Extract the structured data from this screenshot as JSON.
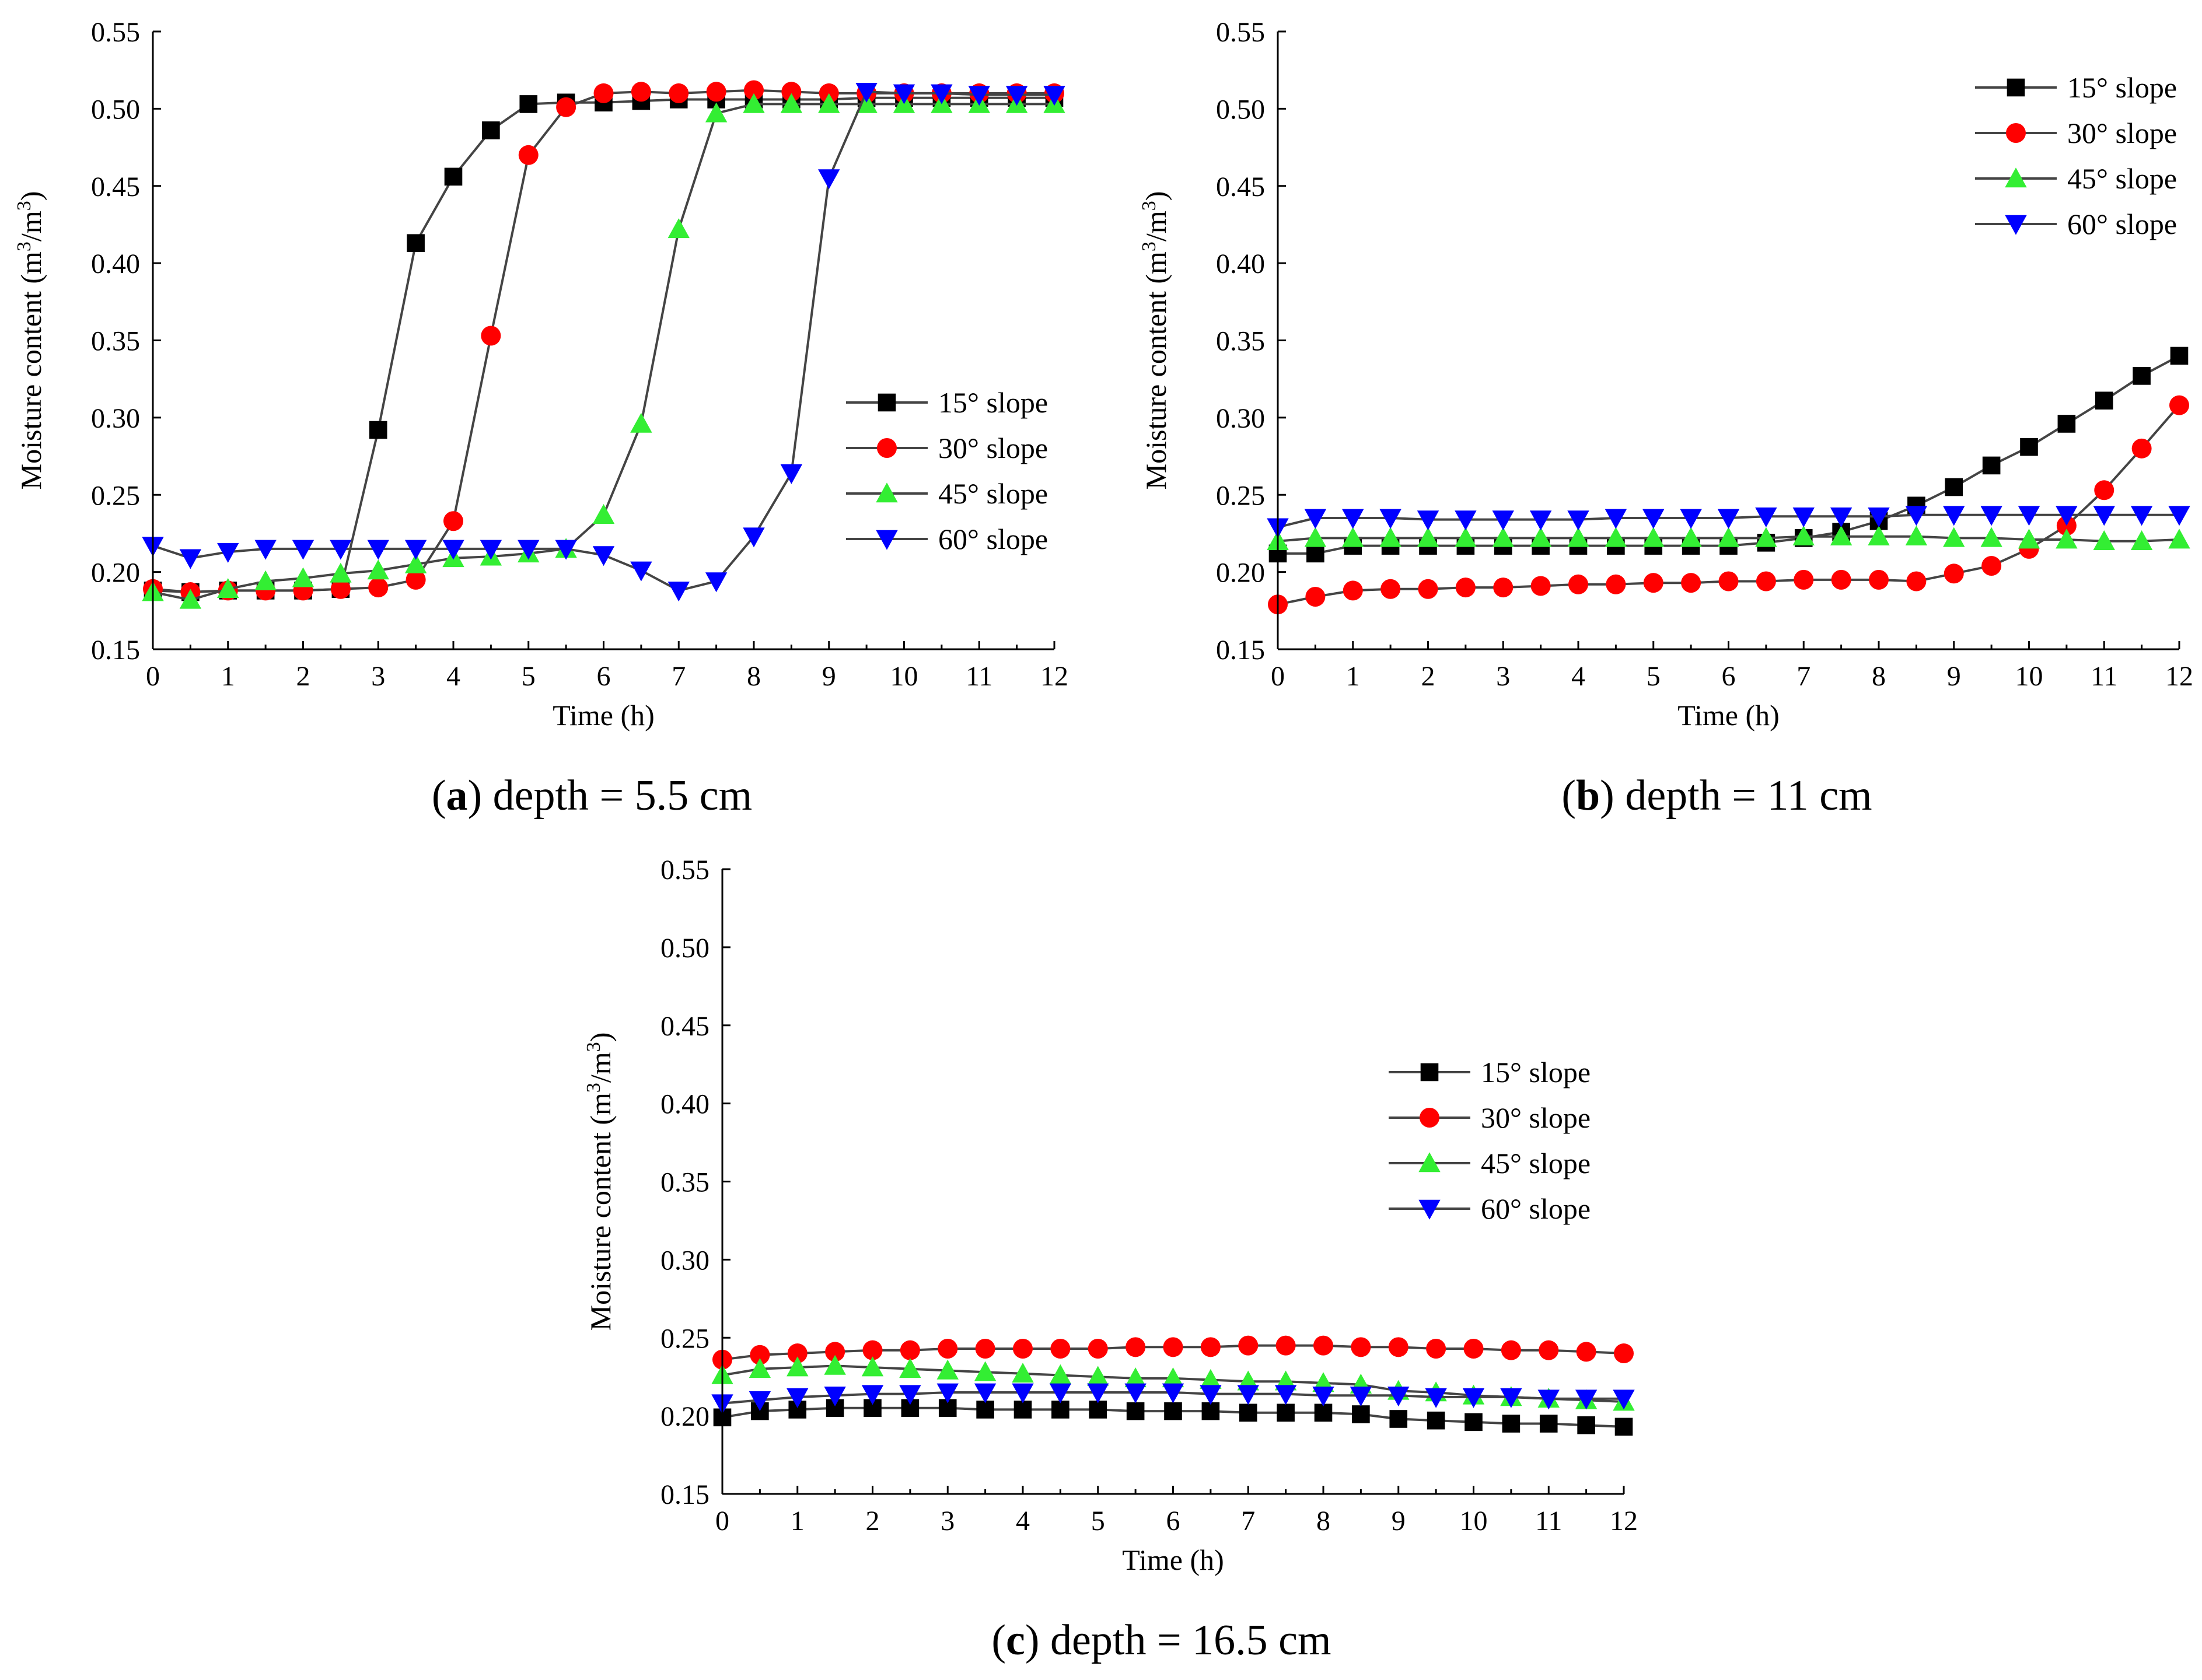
{
  "colors": {
    "s15": "#000000",
    "s30": "#ff0000",
    "s45": "#33ee33",
    "s60": "#0000ff",
    "line": "#444444"
  },
  "chart_data": [
    {
      "type": "line",
      "panel_letter": "a",
      "caption_text": " depth = 5.5 cm",
      "title": "(a) depth = 5.5 cm",
      "xlabel": "Time (h)",
      "ylabel_main": "Moisture content (m",
      "ylabel_sup1": "3",
      "ylabel_mid": "/m",
      "ylabel_sup2": "3",
      "ylabel_end": ")",
      "xlim": [
        0,
        12
      ],
      "ylim": [
        0.15,
        0.55
      ],
      "xticks": [
        "0",
        "1",
        "2",
        "3",
        "4",
        "5",
        "6",
        "7",
        "8",
        "9",
        "10",
        "11",
        "12"
      ],
      "yticks": [
        "0.15",
        "0.20",
        "0.25",
        "0.30",
        "0.35",
        "0.40",
        "0.45",
        "0.50",
        "0.55"
      ],
      "legend_position": "center-right",
      "x": [
        0,
        0.5,
        1,
        1.5,
        2,
        2.5,
        3,
        3.5,
        4,
        4.5,
        5,
        5.5,
        6,
        6.5,
        7,
        7.5,
        8,
        8.5,
        9,
        9.5,
        10,
        10.5,
        11,
        11.5,
        12
      ],
      "series": [
        {
          "name": "15° slope",
          "marker": "square",
          "color_key": "s15",
          "values": [
            0.188,
            0.187,
            0.188,
            0.188,
            0.188,
            0.189,
            0.292,
            0.413,
            0.456,
            0.486,
            0.503,
            0.504,
            0.504,
            0.505,
            0.506,
            0.506,
            0.506,
            0.506,
            0.506,
            0.507,
            0.507,
            0.507,
            0.507,
            0.507,
            0.507
          ]
        },
        {
          "name": "30° slope",
          "marker": "circle",
          "color_key": "s30",
          "values": [
            0.189,
            0.187,
            0.188,
            0.188,
            0.188,
            0.189,
            0.19,
            0.195,
            0.233,
            0.353,
            0.47,
            0.501,
            0.51,
            0.511,
            0.51,
            0.511,
            0.512,
            0.511,
            0.51,
            0.51,
            0.51,
            0.51,
            0.51,
            0.51,
            0.51
          ]
        },
        {
          "name": "45° slope",
          "marker": "triangle-up",
          "color_key": "s45",
          "values": [
            0.187,
            0.182,
            0.189,
            0.194,
            0.196,
            0.199,
            0.201,
            0.205,
            0.209,
            0.21,
            0.212,
            0.215,
            0.237,
            0.296,
            0.422,
            0.497,
            0.503,
            0.503,
            0.503,
            0.503,
            0.503,
            0.503,
            0.503,
            0.503,
            0.503
          ]
        },
        {
          "name": "60° slope",
          "marker": "triangle-down",
          "color_key": "s60",
          "values": [
            0.217,
            0.209,
            0.213,
            0.215,
            0.215,
            0.215,
            0.215,
            0.215,
            0.215,
            0.215,
            0.215,
            0.215,
            0.211,
            0.201,
            0.188,
            0.194,
            0.223,
            0.264,
            0.455,
            0.511,
            0.51,
            0.51,
            0.509,
            0.509,
            0.509
          ]
        }
      ]
    },
    {
      "type": "line",
      "panel_letter": "b",
      "caption_text": " depth = 11 cm",
      "title": "(b) depth = 11 cm",
      "xlabel": "Time (h)",
      "ylabel_main": "Moisture content (m",
      "ylabel_sup1": "3",
      "ylabel_mid": "/m",
      "ylabel_sup2": "3",
      "ylabel_end": ")",
      "xlim": [
        0,
        12
      ],
      "ylim": [
        0.15,
        0.55
      ],
      "xticks": [
        "0",
        "1",
        "2",
        "3",
        "4",
        "5",
        "6",
        "7",
        "8",
        "9",
        "10",
        "11",
        "12"
      ],
      "yticks": [
        "0.15",
        "0.20",
        "0.25",
        "0.30",
        "0.35",
        "0.40",
        "0.45",
        "0.50",
        "0.55"
      ],
      "legend_position": "top-right",
      "x": [
        0,
        0.5,
        1,
        1.5,
        2,
        2.5,
        3,
        3.5,
        4,
        4.5,
        5,
        5.5,
        6,
        6.5,
        7,
        7.5,
        8,
        8.5,
        9,
        9.5,
        10,
        10.5,
        11,
        11.5,
        12
      ],
      "series": [
        {
          "name": "15° slope",
          "marker": "square",
          "color_key": "s15",
          "values": [
            0.212,
            0.212,
            0.217,
            0.217,
            0.217,
            0.217,
            0.217,
            0.217,
            0.217,
            0.217,
            0.217,
            0.217,
            0.217,
            0.219,
            0.222,
            0.226,
            0.233,
            0.243,
            0.255,
            0.269,
            0.281,
            0.296,
            0.311,
            0.327,
            0.34
          ]
        },
        {
          "name": "30° slope",
          "marker": "circle",
          "color_key": "s30",
          "values": [
            0.179,
            0.184,
            0.188,
            0.189,
            0.189,
            0.19,
            0.19,
            0.191,
            0.192,
            0.192,
            0.193,
            0.193,
            0.194,
            0.194,
            0.195,
            0.195,
            0.195,
            0.194,
            0.199,
            0.204,
            0.215,
            0.23,
            0.253,
            0.28,
            0.308
          ]
        },
        {
          "name": "45° slope",
          "marker": "triangle-up",
          "color_key": "s45",
          "values": [
            0.22,
            0.222,
            0.222,
            0.222,
            0.222,
            0.222,
            0.222,
            0.222,
            0.222,
            0.222,
            0.222,
            0.222,
            0.222,
            0.222,
            0.223,
            0.223,
            0.223,
            0.223,
            0.222,
            0.222,
            0.221,
            0.221,
            0.22,
            0.22,
            0.221
          ]
        },
        {
          "name": "60° slope",
          "marker": "triangle-down",
          "color_key": "s60",
          "values": [
            0.229,
            0.235,
            0.235,
            0.235,
            0.234,
            0.234,
            0.234,
            0.234,
            0.234,
            0.235,
            0.235,
            0.235,
            0.235,
            0.236,
            0.236,
            0.236,
            0.236,
            0.237,
            0.237,
            0.237,
            0.237,
            0.237,
            0.237,
            0.237,
            0.237
          ]
        }
      ]
    },
    {
      "type": "line",
      "panel_letter": "c",
      "caption_text": " depth = 16.5 cm",
      "title": "(c) depth = 16.5 cm",
      "xlabel": "Time (h)",
      "ylabel_main": "Moisture content (m",
      "ylabel_sup1": "3",
      "ylabel_mid": "/m",
      "ylabel_sup2": "3",
      "ylabel_end": ")",
      "xlim": [
        0,
        12
      ],
      "ylim": [
        0.15,
        0.55
      ],
      "xticks": [
        "0",
        "1",
        "2",
        "3",
        "4",
        "5",
        "6",
        "7",
        "8",
        "9",
        "10",
        "11",
        "12"
      ],
      "yticks": [
        "0.15",
        "0.20",
        "0.25",
        "0.30",
        "0.35",
        "0.40",
        "0.45",
        "0.50",
        "0.55"
      ],
      "legend_position": "center-right",
      "x": [
        0,
        0.5,
        1,
        1.5,
        2,
        2.5,
        3,
        3.5,
        4,
        4.5,
        5,
        5.5,
        6,
        6.5,
        7,
        7.5,
        8,
        8.5,
        9,
        9.5,
        10,
        10.5,
        11,
        11.5,
        12
      ],
      "series": [
        {
          "name": "15° slope",
          "marker": "square",
          "color_key": "s15",
          "values": [
            0.199,
            0.203,
            0.204,
            0.205,
            0.205,
            0.205,
            0.205,
            0.204,
            0.204,
            0.204,
            0.204,
            0.203,
            0.203,
            0.203,
            0.202,
            0.202,
            0.202,
            0.201,
            0.198,
            0.197,
            0.196,
            0.195,
            0.195,
            0.194,
            0.193
          ]
        },
        {
          "name": "30° slope",
          "marker": "circle",
          "color_key": "s30",
          "values": [
            0.236,
            0.239,
            0.24,
            0.241,
            0.242,
            0.242,
            0.243,
            0.243,
            0.243,
            0.243,
            0.243,
            0.244,
            0.244,
            0.244,
            0.245,
            0.245,
            0.245,
            0.244,
            0.244,
            0.243,
            0.243,
            0.242,
            0.242,
            0.241,
            0.24
          ]
        },
        {
          "name": "45° slope",
          "marker": "triangle-up",
          "color_key": "s45",
          "values": [
            0.226,
            0.23,
            0.231,
            0.232,
            0.231,
            0.23,
            0.229,
            0.228,
            0.227,
            0.226,
            0.225,
            0.224,
            0.224,
            0.223,
            0.222,
            0.222,
            0.221,
            0.22,
            0.216,
            0.215,
            0.213,
            0.212,
            0.211,
            0.21,
            0.209
          ]
        },
        {
          "name": "60° slope",
          "marker": "triangle-down",
          "color_key": "s60",
          "values": [
            0.208,
            0.21,
            0.212,
            0.213,
            0.214,
            0.214,
            0.215,
            0.215,
            0.215,
            0.215,
            0.215,
            0.215,
            0.215,
            0.214,
            0.214,
            0.214,
            0.213,
            0.213,
            0.213,
            0.212,
            0.212,
            0.212,
            0.211,
            0.211,
            0.211
          ]
        }
      ]
    }
  ]
}
